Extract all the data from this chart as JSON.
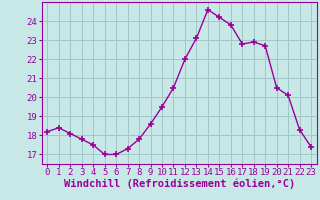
{
  "x": [
    0,
    1,
    2,
    3,
    4,
    5,
    6,
    7,
    8,
    9,
    10,
    11,
    12,
    13,
    14,
    15,
    16,
    17,
    18,
    19,
    20,
    21,
    22,
    23
  ],
  "y": [
    18.2,
    18.4,
    18.1,
    17.8,
    17.5,
    17.0,
    17.0,
    17.3,
    17.8,
    18.6,
    19.5,
    20.5,
    22.0,
    23.1,
    24.6,
    24.2,
    23.8,
    22.8,
    22.9,
    22.7,
    20.5,
    20.1,
    18.3,
    17.4
  ],
  "line_color": "#990099",
  "marker": "+",
  "marker_size": 5,
  "marker_lw": 1.2,
  "bg_color": "#c8e8e8",
  "grid_color": "#a0c8c8",
  "axis_color": "#990099",
  "tick_color": "#990099",
  "xlabel": "Windchill (Refroidissement éolien,°C)",
  "xlabel_color": "#990099",
  "ylim": [
    16.5,
    25.0
  ],
  "yticks": [
    17,
    18,
    19,
    20,
    21,
    22,
    23,
    24
  ],
  "xticks": [
    0,
    1,
    2,
    3,
    4,
    5,
    6,
    7,
    8,
    9,
    10,
    11,
    12,
    13,
    14,
    15,
    16,
    17,
    18,
    19,
    20,
    21,
    22,
    23
  ],
  "tick_fontsize": 6.5,
  "xlabel_fontsize": 7.5,
  "line_width": 1.0
}
